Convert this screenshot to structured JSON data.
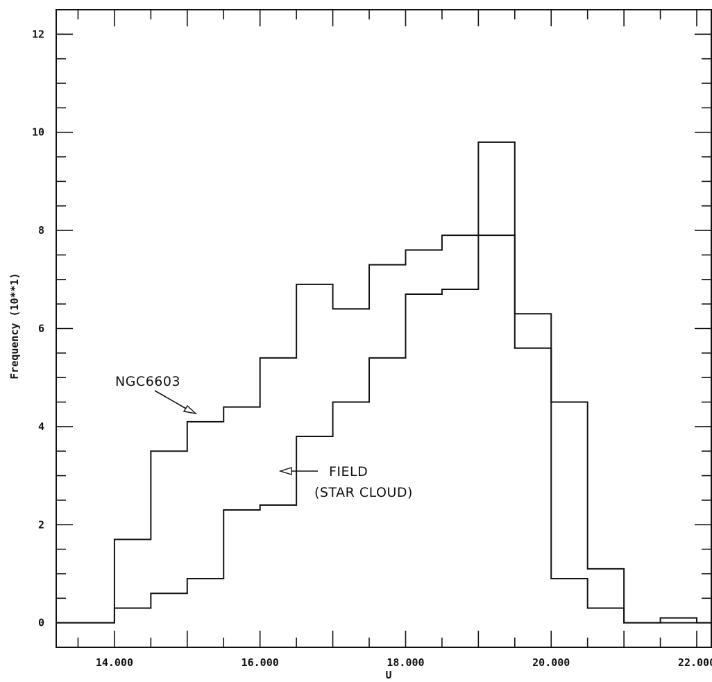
{
  "chart_data": {
    "type": "line",
    "step": true,
    "title": "",
    "xlabel": "U",
    "ylabel": "Frequency (10**1)",
    "xlim": [
      13.2,
      22.2
    ],
    "ylim": [
      -0.5,
      12.5
    ],
    "xticks": [
      14.0,
      16.0,
      18.0,
      20.0,
      22.0
    ],
    "xtick_labels": [
      "14.000",
      "16.000",
      "18.000",
      "20.000",
      "22.000"
    ],
    "yticks": [
      0,
      2,
      4,
      6,
      8,
      10,
      12
    ],
    "ytick_labels": [
      "0",
      "2",
      "4",
      "6",
      "8",
      "10",
      "12"
    ],
    "bin_edges": [
      14.0,
      14.5,
      15.0,
      15.5,
      16.0,
      16.5,
      17.0,
      17.5,
      18.0,
      18.5,
      19.0,
      19.5,
      20.0,
      20.5,
      21.0,
      21.5,
      22.0
    ],
    "grid": false,
    "series": [
      {
        "name": "NGC6603",
        "values": [
          1.7,
          3.5,
          4.1,
          4.4,
          5.4,
          6.9,
          6.4,
          7.3,
          7.6,
          7.9,
          7.9,
          5.6,
          4.5,
          1.1,
          0.0,
          0.1
        ]
      },
      {
        "name": "FIELD (STAR CLOUD)",
        "values": [
          0.3,
          0.6,
          0.9,
          2.3,
          2.4,
          3.8,
          4.5,
          5.4,
          6.7,
          6.8,
          9.8,
          6.3,
          0.9,
          0.3,
          0.0,
          0.0
        ]
      }
    ],
    "annotations": [
      {
        "line1": "NGC6603",
        "line2": ""
      },
      {
        "line1": "FIELD",
        "line2": "(STAR CLOUD)"
      }
    ]
  }
}
